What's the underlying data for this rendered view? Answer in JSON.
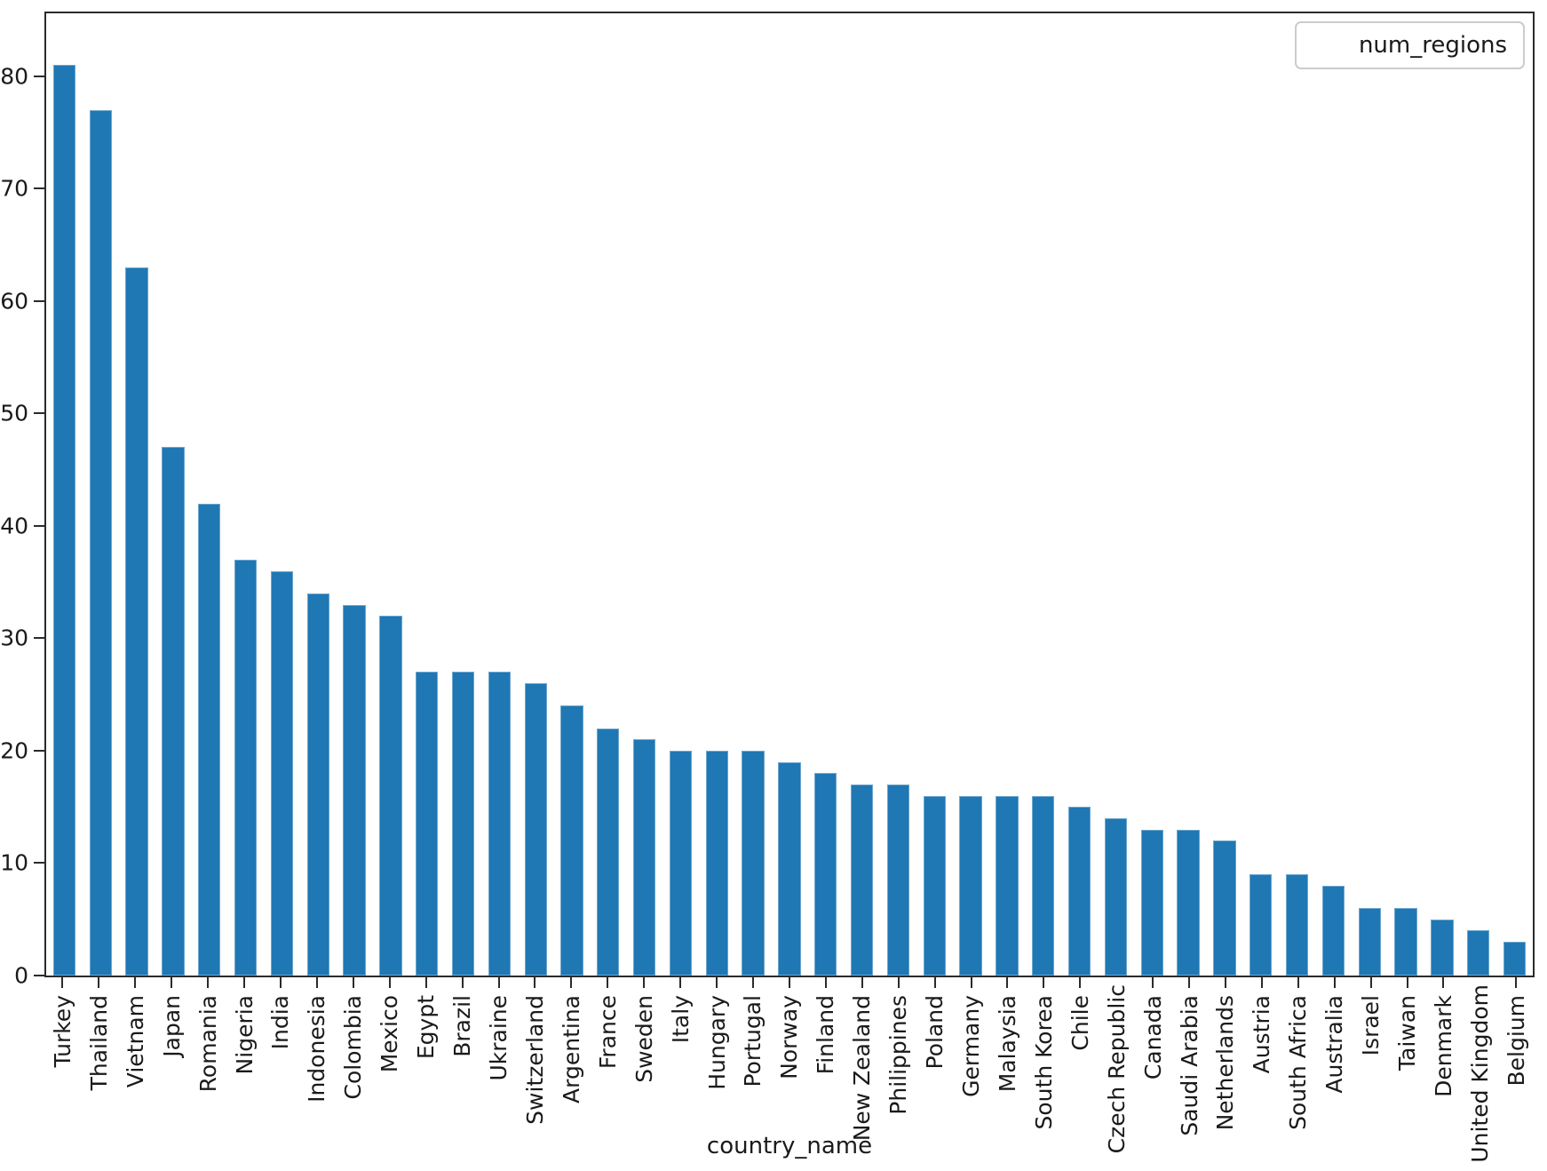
{
  "chart_data": {
    "type": "bar",
    "title": "",
    "xlabel": "country_name",
    "ylabel": "",
    "legend_label": "num_regions",
    "legend_position": "upper right",
    "grid": false,
    "bar_color": "#1f77b4",
    "axis_color": "#2b2b2b",
    "ylim": [
      0,
      85.6
    ],
    "yticks": [
      0,
      10,
      20,
      30,
      40,
      50,
      60,
      70,
      80
    ],
    "categories": [
      "Turkey",
      "Thailand",
      "Vietnam",
      "Japan",
      "Romania",
      "Nigeria",
      "India",
      "Indonesia",
      "Colombia",
      "Mexico",
      "Egypt",
      "Brazil",
      "Ukraine",
      "Switzerland",
      "Argentina",
      "France",
      "Sweden",
      "Italy",
      "Hungary",
      "Portugal",
      "Norway",
      "Finland",
      "New Zealand",
      "Philippines",
      "Poland",
      "Germany",
      "Malaysia",
      "South Korea",
      "Chile",
      "Czech Republic",
      "Canada",
      "Saudi Arabia",
      "Netherlands",
      "Austria",
      "South Africa",
      "Australia",
      "Israel",
      "Taiwan",
      "Denmark",
      "United Kingdom",
      "Belgium"
    ],
    "values": [
      81,
      77,
      63,
      47,
      42,
      37,
      36,
      34,
      33,
      32,
      27,
      27,
      27,
      26,
      24,
      22,
      21,
      20,
      20,
      20,
      19,
      18,
      17,
      17,
      16,
      16,
      16,
      16,
      15,
      14,
      13,
      13,
      12,
      9,
      9,
      8,
      6,
      6,
      5,
      4,
      3
    ]
  }
}
